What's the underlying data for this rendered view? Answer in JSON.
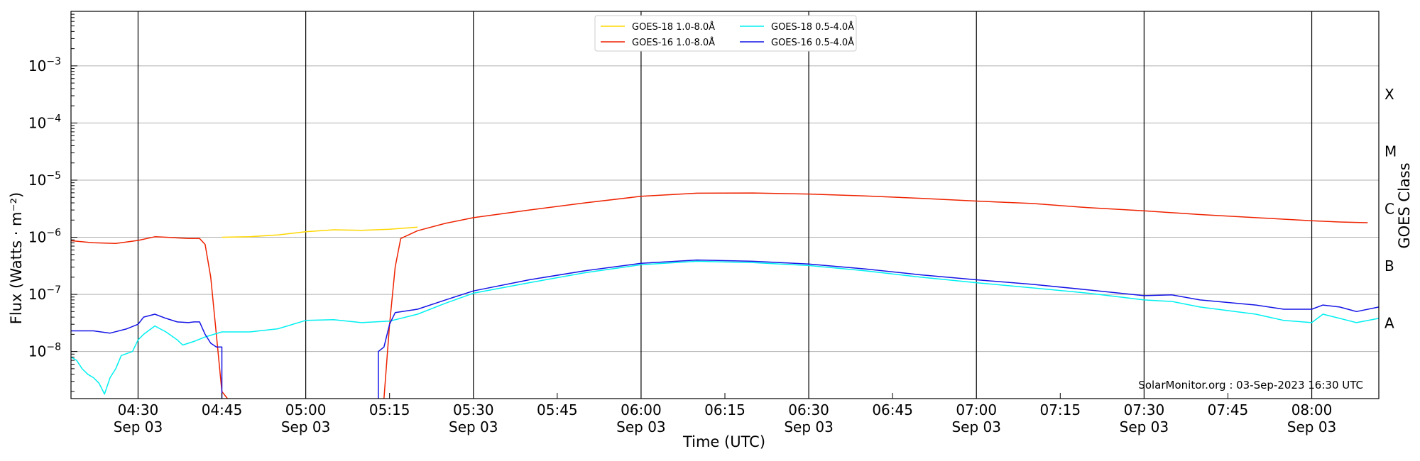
{
  "chart_data": {
    "type": "line",
    "title": "",
    "xlabel": "Time (UTC)",
    "ylabel": "Flux (Watts · m⁻²)",
    "right_ylabel": "GOES Class",
    "yscale": "log",
    "ylim": [
      1.5e-09,
      0.009
    ],
    "xlim": [
      "2023-09-03 04:18",
      "2023-09-03 08:12"
    ],
    "grid": "horizontal at decades; vertical black lines every 30 min",
    "legend_position": "top-center",
    "watermark": "SolarMonitor.org : 03-Sep-2023 16:30 UTC",
    "y_tick_labels": [
      {
        "value": 1e-08,
        "base": "10",
        "exp": "−8"
      },
      {
        "value": 1e-07,
        "base": "10",
        "exp": "−7"
      },
      {
        "value": 1e-06,
        "base": "10",
        "exp": "−6"
      },
      {
        "value": 1e-05,
        "base": "10",
        "exp": "−5"
      },
      {
        "value": 0.0001,
        "base": "10",
        "exp": "−4"
      },
      {
        "value": 0.001,
        "base": "10",
        "exp": "−3"
      }
    ],
    "goes_classes": [
      {
        "label": "A",
        "value": 3.16e-08
      },
      {
        "label": "B",
        "value": 3.16e-07
      },
      {
        "label": "C",
        "value": 3.16e-06
      },
      {
        "label": "M",
        "value": 3.16e-05
      },
      {
        "label": "X",
        "value": 0.000316
      }
    ],
    "x_major_ticks": [
      {
        "time": "04:30",
        "line1": "04:30",
        "line2": "Sep 03"
      },
      {
        "time": "05:00",
        "line1": "05:00",
        "line2": "Sep 03"
      },
      {
        "time": "05:30",
        "line1": "05:30",
        "line2": "Sep 03"
      },
      {
        "time": "06:00",
        "line1": "06:00",
        "line2": "Sep 03"
      },
      {
        "time": "06:30",
        "line1": "06:30",
        "line2": "Sep 03"
      },
      {
        "time": "07:00",
        "line1": "07:00",
        "line2": "Sep 03"
      },
      {
        "time": "07:30",
        "line1": "07:30",
        "line2": "Sep 03"
      },
      {
        "time": "08:00",
        "line1": "08:00",
        "line2": "Sep 03"
      }
    ],
    "x_minor_ticks": [
      "04:45",
      "05:15",
      "05:45",
      "06:15",
      "06:45",
      "07:15",
      "07:45"
    ],
    "series": [
      {
        "name": "GOES-18 1.0-8.0Å",
        "color": "#ffd700",
        "points": [
          [
            "04:45",
            1e-06
          ],
          [
            "04:50",
            1.02e-06
          ],
          [
            "04:55",
            1.1e-06
          ],
          [
            "05:00",
            1.25e-06
          ],
          [
            "05:05",
            1.35e-06
          ],
          [
            "05:10",
            1.32e-06
          ],
          [
            "05:15",
            1.38e-06
          ],
          [
            "05:20",
            1.5e-06
          ]
        ]
      },
      {
        "name": "GOES-16 1.0-8.0Å",
        "color": "#ee2200",
        "points": [
          [
            "04:18",
            8.7e-07
          ],
          [
            "04:22",
            8e-07
          ],
          [
            "04:26",
            7.8e-07
          ],
          [
            "04:30",
            8.8e-07
          ],
          [
            "04:33",
            1.02e-06
          ],
          [
            "04:36",
            9.9e-07
          ],
          [
            "04:39",
            9.5e-07
          ],
          [
            "04:41",
            9.5e-07
          ],
          [
            "04:42",
            7.5e-07
          ],
          [
            "04:43",
            2e-07
          ],
          [
            "04:44",
            2e-08
          ],
          [
            "04:45",
            2e-09
          ],
          [
            "04:46",
            1.5e-09
          ],
          [
            null,
            null
          ],
          [
            "05:14",
            1.5e-09
          ],
          [
            "05:15",
            3e-08
          ],
          [
            "05:16",
            3e-07
          ],
          [
            "05:17",
            9.5e-07
          ],
          [
            "05:20",
            1.3e-06
          ],
          [
            "05:25",
            1.75e-06
          ],
          [
            "05:30",
            2.2e-06
          ],
          [
            "05:40",
            3e-06
          ],
          [
            "05:50",
            4e-06
          ],
          [
            "06:00",
            5.2e-06
          ],
          [
            "06:10",
            5.9e-06
          ],
          [
            "06:20",
            5.95e-06
          ],
          [
            "06:30",
            5.7e-06
          ],
          [
            "06:40",
            5.3e-06
          ],
          [
            "06:50",
            4.8e-06
          ],
          [
            "07:00",
            4.3e-06
          ],
          [
            "07:10",
            3.9e-06
          ],
          [
            "07:20",
            3.3e-06
          ],
          [
            "07:30",
            2.9e-06
          ],
          [
            "07:40",
            2.5e-06
          ],
          [
            "07:50",
            2.2e-06
          ],
          [
            "08:00",
            1.95e-06
          ],
          [
            "08:05",
            1.85e-06
          ],
          [
            "08:10",
            1.8e-06
          ]
        ]
      },
      {
        "name": "GOES-18 0.5-4.0Å",
        "color": "#00f0f0",
        "points": [
          [
            "04:18",
            8e-09
          ],
          [
            "04:19",
            7e-09
          ],
          [
            "04:20",
            5e-09
          ],
          [
            "04:21",
            4e-09
          ],
          [
            "04:22",
            3.5e-09
          ],
          [
            "04:23",
            2.8e-09
          ],
          [
            "04:24",
            1.8e-09
          ],
          [
            "04:25",
            3.5e-09
          ],
          [
            "04:26",
            5e-09
          ],
          [
            "04:27",
            8.5e-09
          ],
          [
            "04:29",
            1e-08
          ],
          [
            "04:30",
            1.6e-08
          ],
          [
            "04:31",
            2e-08
          ],
          [
            "04:33",
            2.8e-08
          ],
          [
            "04:35",
            2.2e-08
          ],
          [
            "04:37",
            1.6e-08
          ],
          [
            "04:38",
            1.3e-08
          ],
          [
            "04:40",
            1.5e-08
          ],
          [
            "04:42",
            1.8e-08
          ],
          [
            "04:45",
            2.2e-08
          ],
          [
            "04:50",
            2.2e-08
          ],
          [
            "04:55",
            2.5e-08
          ],
          [
            "05:00",
            3.5e-08
          ],
          [
            "05:05",
            3.6e-08
          ],
          [
            "05:10",
            3.2e-08
          ],
          [
            "05:15",
            3.4e-08
          ],
          [
            "05:20",
            4.5e-08
          ],
          [
            "05:25",
            7e-08
          ],
          [
            "05:30",
            1.05e-07
          ],
          [
            "05:40",
            1.6e-07
          ],
          [
            "05:50",
            2.4e-07
          ],
          [
            "06:00",
            3.3e-07
          ],
          [
            "06:10",
            3.8e-07
          ],
          [
            "06:20",
            3.6e-07
          ],
          [
            "06:30",
            3.2e-07
          ],
          [
            "06:40",
            2.6e-07
          ],
          [
            "06:50",
            2e-07
          ],
          [
            "07:00",
            1.6e-07
          ],
          [
            "07:10",
            1.3e-07
          ],
          [
            "07:20",
            1.05e-07
          ],
          [
            "07:30",
            8e-08
          ],
          [
            "07:35",
            7.5e-08
          ],
          [
            "07:40",
            6e-08
          ],
          [
            "07:50",
            4.5e-08
          ],
          [
            "07:55",
            3.5e-08
          ],
          [
            "08:00",
            3.2e-08
          ],
          [
            "08:02",
            4.5e-08
          ],
          [
            "08:05",
            3.8e-08
          ],
          [
            "08:08",
            3.2e-08
          ],
          [
            "08:12",
            3.8e-08
          ]
        ]
      },
      {
        "name": "GOES-16 0.5-4.0Å",
        "color": "#1414e6",
        "points": [
          [
            "04:18",
            2.3e-08
          ],
          [
            "04:22",
            2.3e-08
          ],
          [
            "04:25",
            2.1e-08
          ],
          [
            "04:28",
            2.5e-08
          ],
          [
            "04:30",
            3e-08
          ],
          [
            "04:31",
            4e-08
          ],
          [
            "04:33",
            4.5e-08
          ],
          [
            "04:35",
            3.8e-08
          ],
          [
            "04:37",
            3.3e-08
          ],
          [
            "04:39",
            3.2e-08
          ],
          [
            "04:40",
            3.3e-08
          ],
          [
            "04:41",
            3.3e-08
          ],
          [
            "04:42",
            2e-08
          ],
          [
            "04:43",
            1.4e-08
          ],
          [
            "04:44",
            1.2e-08
          ],
          [
            "04:45",
            1.2e-08
          ],
          [
            "04:45",
            1.5e-09
          ],
          [
            null,
            null
          ],
          [
            "05:13",
            1.5e-09
          ],
          [
            "05:13",
            1e-08
          ],
          [
            "05:14",
            1.2e-08
          ],
          [
            "05:15",
            3e-08
          ],
          [
            "05:16",
            4.8e-08
          ],
          [
            "05:20",
            5.5e-08
          ],
          [
            "05:25",
            8e-08
          ],
          [
            "05:30",
            1.15e-07
          ],
          [
            "05:40",
            1.8e-07
          ],
          [
            "05:50",
            2.6e-07
          ],
          [
            "06:00",
            3.5e-07
          ],
          [
            "06:10",
            4e-07
          ],
          [
            "06:20",
            3.8e-07
          ],
          [
            "06:30",
            3.4e-07
          ],
          [
            "06:40",
            2.8e-07
          ],
          [
            "06:50",
            2.2e-07
          ],
          [
            "07:00",
            1.8e-07
          ],
          [
            "07:10",
            1.5e-07
          ],
          [
            "07:20",
            1.2e-07
          ],
          [
            "07:30",
            9.5e-08
          ],
          [
            "07:35",
            9.8e-08
          ],
          [
            "07:40",
            8e-08
          ],
          [
            "07:50",
            6.5e-08
          ],
          [
            "07:55",
            5.5e-08
          ],
          [
            "08:00",
            5.5e-08
          ],
          [
            "08:02",
            6.5e-08
          ],
          [
            "08:05",
            6e-08
          ],
          [
            "08:08",
            5e-08
          ],
          [
            "08:12",
            6e-08
          ]
        ]
      }
    ]
  }
}
